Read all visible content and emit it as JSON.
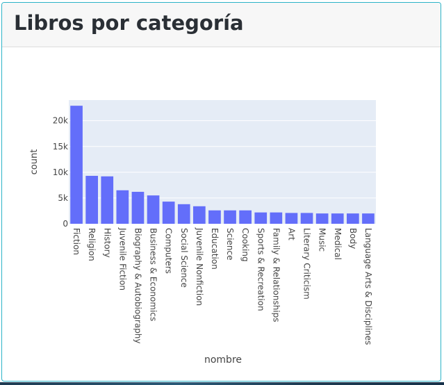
{
  "card": {
    "title": "Libros por categoría"
  },
  "chart_data": {
    "type": "bar",
    "title": "",
    "xlabel": "nombre",
    "ylabel": "count",
    "ylim": [
      0,
      24000
    ],
    "yticks": [
      0,
      5000,
      10000,
      15000,
      20000
    ],
    "ytick_labels": [
      "0",
      "5k",
      "10k",
      "15k",
      "20k"
    ],
    "grid": true,
    "bar_color": "#636efa",
    "plot_background": "#e5ecf6",
    "categories": [
      "Fiction",
      "Religion",
      "History",
      "Juvenile Fiction",
      "Biography & Autobiography",
      "Business & Economics",
      "Computers",
      "Social Science",
      "Juvenile Nonfiction",
      "Education",
      "Science",
      "Cooking",
      "Sports & Recreation",
      "Family & Relationships",
      "Art",
      "Literary Criticism",
      "Music",
      "Medical",
      "Body",
      "Language Arts & Disciplines"
    ],
    "values": [
      22900,
      9300,
      9200,
      6500,
      6200,
      5500,
      4300,
      3800,
      3400,
      2600,
      2600,
      2600,
      2200,
      2200,
      2100,
      2100,
      2000,
      2000,
      2000,
      2000
    ]
  }
}
